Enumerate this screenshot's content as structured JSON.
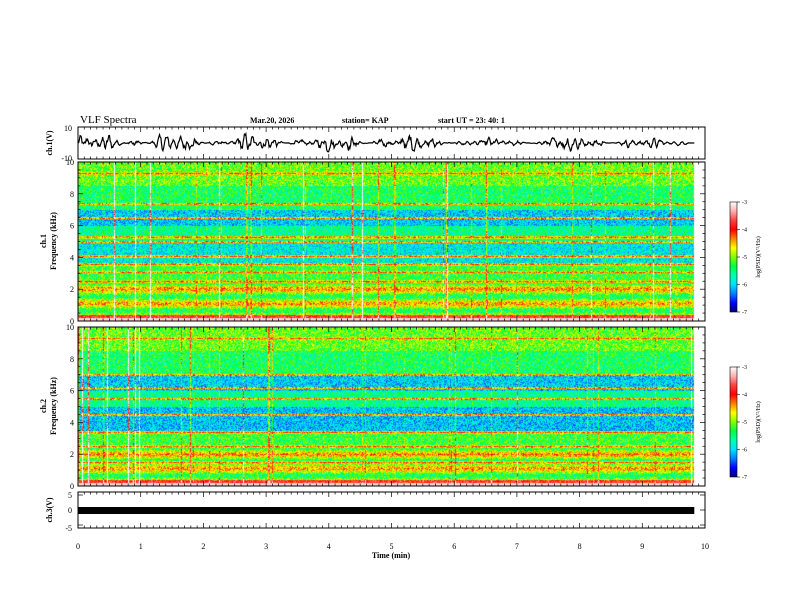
{
  "header": {
    "title": "VLF Spectra",
    "date": "Mar.20, 2026",
    "station": "station= KAP",
    "start": "start UT =  23: 40: 1"
  },
  "chart_data": [
    {
      "type": "line",
      "panel": "ch.1 waveform",
      "ylabel": "ch.1(V)",
      "x_range": [
        0,
        9.83
      ],
      "ylim": [
        -10,
        10
      ],
      "y_tick_labels": [
        "10",
        "-10"
      ],
      "waveform": "noisy signal around 0 V, amplitude about 2-7 V"
    },
    {
      "type": "heatmap",
      "panel": "ch.1 spectrogram",
      "ylabel": "ch.1\nFrequency (kHz)",
      "ylim": [
        0,
        10
      ],
      "y_tick_labels": [
        "0",
        "2",
        "4",
        "6",
        "8",
        "10"
      ],
      "colorbar": {
        "label": "log(PSD)(V²/Hz)",
        "range": [
          -7,
          -3
        ],
        "tick_labels": [
          "-3",
          "-4",
          "-5",
          "-6",
          "-7"
        ]
      },
      "notable_bands_khz": [
        0.3,
        1.1,
        2.1,
        2.5,
        3.1,
        3.6,
        4.1,
        5.0,
        5.3,
        6.5,
        7.4,
        9.3
      ]
    },
    {
      "type": "heatmap",
      "panel": "ch.2 spectrogram",
      "ylabel": "ch.2\nFrequency (kHz)",
      "ylim": [
        0,
        10
      ],
      "y_tick_labels": [
        "0",
        "2",
        "4",
        "6",
        "8",
        "10"
      ],
      "colorbar": {
        "label": "log(PSD)(V²/Hz)",
        "range": [
          -7,
          -3
        ],
        "tick_labels": [
          "-3",
          "-4",
          "-5",
          "-6",
          "-7"
        ]
      },
      "notable_bands_khz": [
        0.3,
        1.5,
        2.0,
        2.5,
        3.4,
        4.5,
        5.5,
        6.2,
        7.0,
        9.3
      ]
    },
    {
      "type": "line",
      "panel": "ch.3 level",
      "ylabel": "ch.3(V)",
      "ylim": [
        -5,
        5
      ],
      "y_tick_labels": [
        "5",
        "0",
        "-5"
      ],
      "constant_value_v": -0.5
    }
  ],
  "x_axis": {
    "label": "Time (min)",
    "range": [
      0,
      10
    ],
    "tick_labels": [
      "0",
      "1",
      "2",
      "3",
      "4",
      "5",
      "6",
      "7",
      "8",
      "9",
      "10"
    ]
  },
  "colors": {
    "colormap": [
      "#00007a",
      "#0000ff",
      "#0080ff",
      "#00e0ff",
      "#00ffb0",
      "#00ff40",
      "#80ff00",
      "#ffff00",
      "#ff8000",
      "#ff0000",
      "#ff4040",
      "#ffb0b0",
      "#ffffff"
    ]
  }
}
